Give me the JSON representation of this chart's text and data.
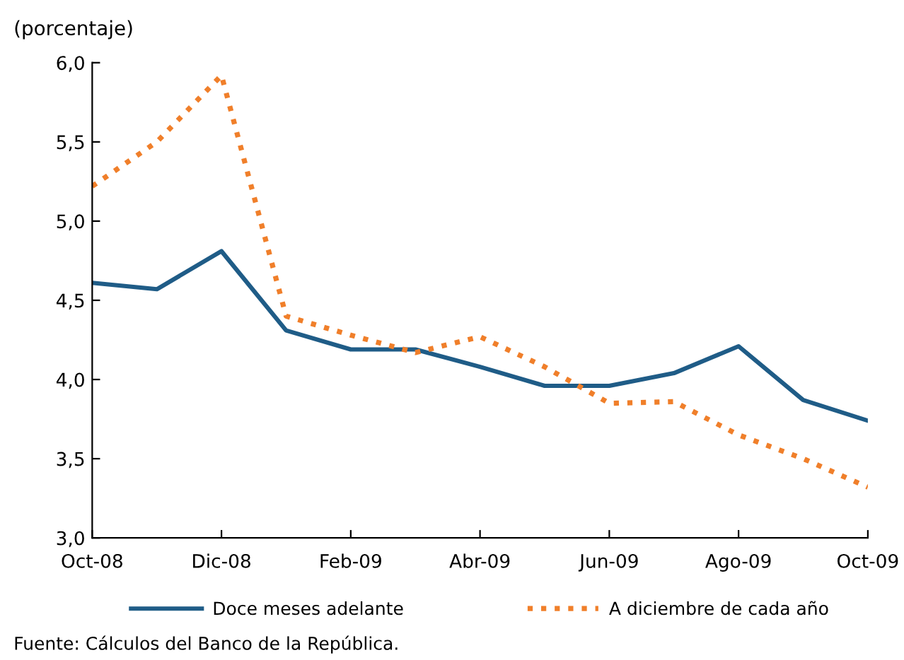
{
  "chart_data": {
    "type": "line",
    "ylabel": "(porcentaje)",
    "categories": [
      "Oct-08",
      null,
      "Dic-08",
      null,
      "Feb-09",
      null,
      "Abr-09",
      null,
      "Jun-09",
      null,
      "Ago-09",
      null,
      "Oct-09"
    ],
    "series": [
      {
        "name": "Doce meses adelante",
        "color": "#1f5c87",
        "line_style": "solid",
        "values": [
          4.61,
          4.57,
          4.81,
          4.31,
          4.19,
          4.19,
          4.08,
          3.96,
          3.96,
          4.04,
          4.21,
          3.87,
          3.74
        ]
      },
      {
        "name": "A diciembre de cada año",
        "color": "#f07f2a",
        "line_style": "dotted",
        "values": [
          5.22,
          5.5,
          5.92,
          4.4,
          4.28,
          4.17,
          4.27,
          4.08,
          3.85,
          3.86,
          3.65,
          3.5,
          3.32
        ]
      }
    ],
    "ylim": [
      3.0,
      6.0
    ],
    "yticks": [
      {
        "value": 3.0,
        "label": "3,0"
      },
      {
        "value": 3.5,
        "label": "3,5"
      },
      {
        "value": 4.0,
        "label": "4,0"
      },
      {
        "value": 4.5,
        "label": "4,5"
      },
      {
        "value": 5.0,
        "label": "5,0"
      },
      {
        "value": 5.5,
        "label": "5,5"
      },
      {
        "value": 6.0,
        "label": "6,0"
      }
    ],
    "grid": false,
    "legend": "bottom",
    "marker": "none",
    "annotations": [
      "Fuente: Cálculos del Banco de la República."
    ]
  }
}
